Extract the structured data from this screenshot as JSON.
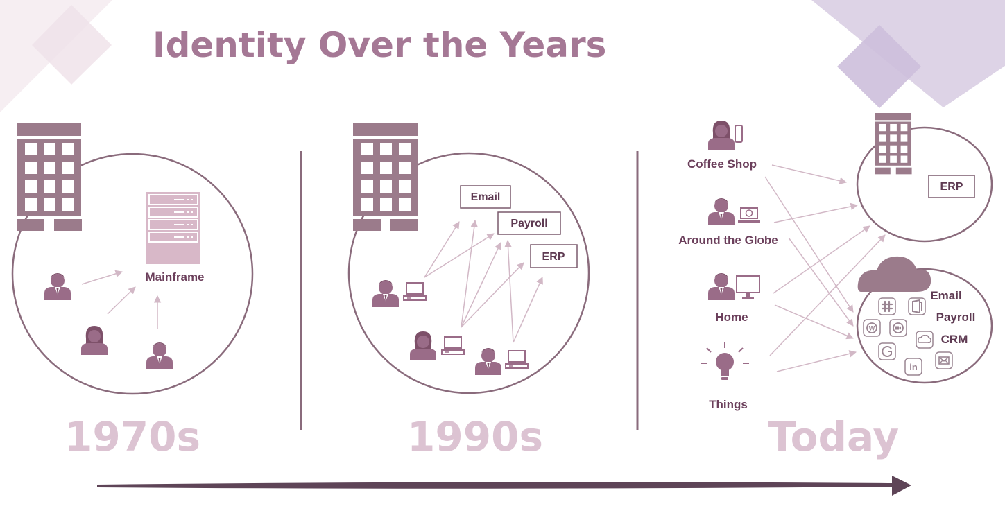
{
  "title": "Identity Over the Years",
  "eras": [
    "1970s",
    "1990s",
    "Today"
  ],
  "era_1970s": {
    "server_label": "Mainframe"
  },
  "era_1990s": {
    "apps": [
      "Email",
      "Payroll",
      "ERP"
    ]
  },
  "era_today": {
    "locations": [
      "Coffee Shop",
      "Around the Globe",
      "Home",
      "Things"
    ],
    "onprem_app": "ERP",
    "cloud_apps": [
      "Email",
      "Payroll",
      "CRM"
    ],
    "cloud_icons": [
      "slack-icon",
      "office-icon",
      "wordpress-icon",
      "zoom-icon",
      "salesforce-icon",
      "google-icon",
      "linkedin-icon",
      "mail-icon"
    ]
  },
  "colors": {
    "title": "#a57895",
    "era": "#dcc3d2",
    "building": "#9b7b8b",
    "person": "#9a6c88",
    "line": "#8a6b7c",
    "arrow": "#d2b8c6",
    "timeline": "#5e4457"
  }
}
